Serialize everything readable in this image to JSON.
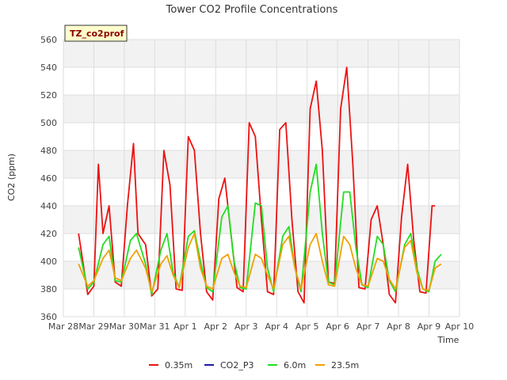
{
  "chart_data": {
    "type": "line",
    "title": "Tower CO2 Profile Concentrations",
    "xlabel": "Time",
    "ylabel": "CO2 (ppm)",
    "tag": "TZ_co2prof",
    "ylim": [
      360,
      560
    ],
    "yticks": [
      360,
      380,
      400,
      420,
      440,
      460,
      480,
      500,
      520,
      540,
      560
    ],
    "xlim": [
      0,
      13
    ],
    "xticks": [
      {
        "pos": 0,
        "label": "Mar 28"
      },
      {
        "pos": 1,
        "label": "Mar 29"
      },
      {
        "pos": 2,
        "label": "Mar 30"
      },
      {
        "pos": 3,
        "label": "Mar 31"
      },
      {
        "pos": 4,
        "label": "Apr 1"
      },
      {
        "pos": 5,
        "label": "Apr 2"
      },
      {
        "pos": 6,
        "label": "Apr 3"
      },
      {
        "pos": 7,
        "label": "Apr 4"
      },
      {
        "pos": 8,
        "label": "Apr 5"
      },
      {
        "pos": 9,
        "label": "Apr 6"
      },
      {
        "pos": 10,
        "label": "Apr 7"
      },
      {
        "pos": 11,
        "label": "Apr 8"
      },
      {
        "pos": 12,
        "label": "Apr 9"
      },
      {
        "pos": 13,
        "label": "Apr 10"
      }
    ],
    "grid": true,
    "series": [
      {
        "name": "0.35m",
        "color": "#ee1111",
        "values": [
          [
            0.5,
            420
          ],
          [
            0.8,
            376
          ],
          [
            1.0,
            382
          ],
          [
            1.15,
            470
          ],
          [
            1.3,
            420
          ],
          [
            1.5,
            440
          ],
          [
            1.7,
            385
          ],
          [
            1.9,
            382
          ],
          [
            2.1,
            440
          ],
          [
            2.3,
            485
          ],
          [
            2.45,
            420
          ],
          [
            2.7,
            412
          ],
          [
            2.9,
            375
          ],
          [
            3.1,
            380
          ],
          [
            3.3,
            480
          ],
          [
            3.5,
            455
          ],
          [
            3.7,
            380
          ],
          [
            3.9,
            379
          ],
          [
            4.1,
            490
          ],
          [
            4.3,
            480
          ],
          [
            4.5,
            420
          ],
          [
            4.7,
            378
          ],
          [
            4.9,
            372
          ],
          [
            5.1,
            445
          ],
          [
            5.3,
            460
          ],
          [
            5.5,
            420
          ],
          [
            5.7,
            381
          ],
          [
            5.9,
            378
          ],
          [
            6.1,
            500
          ],
          [
            6.3,
            490
          ],
          [
            6.5,
            430
          ],
          [
            6.7,
            378
          ],
          [
            6.9,
            376
          ],
          [
            7.1,
            495
          ],
          [
            7.3,
            500
          ],
          [
            7.5,
            430
          ],
          [
            7.7,
            378
          ],
          [
            7.9,
            370
          ],
          [
            8.1,
            510
          ],
          [
            8.3,
            530
          ],
          [
            8.5,
            480
          ],
          [
            8.7,
            385
          ],
          [
            8.9,
            384
          ],
          [
            9.1,
            510
          ],
          [
            9.3,
            540
          ],
          [
            9.5,
            470
          ],
          [
            9.7,
            381
          ],
          [
            9.9,
            380
          ],
          [
            10.1,
            430
          ],
          [
            10.3,
            440
          ],
          [
            10.5,
            412
          ],
          [
            10.7,
            376
          ],
          [
            10.9,
            370
          ],
          [
            11.1,
            432
          ],
          [
            11.3,
            470
          ],
          [
            11.5,
            415
          ],
          [
            11.7,
            378
          ],
          [
            11.9,
            377
          ],
          [
            12.1,
            440
          ],
          [
            12.2,
            440
          ]
        ]
      },
      {
        "name": "CO2_P3",
        "color": "#1a1aa8",
        "values": []
      },
      {
        "name": "6.0m",
        "color": "#22dd22",
        "values": [
          [
            0.5,
            410
          ],
          [
            0.8,
            380
          ],
          [
            1.0,
            385
          ],
          [
            1.3,
            412
          ],
          [
            1.5,
            418
          ],
          [
            1.7,
            386
          ],
          [
            1.9,
            385
          ],
          [
            2.2,
            415
          ],
          [
            2.4,
            420
          ],
          [
            2.7,
            398
          ],
          [
            2.9,
            376
          ],
          [
            3.2,
            408
          ],
          [
            3.4,
            420
          ],
          [
            3.6,
            392
          ],
          [
            3.8,
            381
          ],
          [
            4.1,
            418
          ],
          [
            4.3,
            422
          ],
          [
            4.5,
            400
          ],
          [
            4.7,
            381
          ],
          [
            4.9,
            378
          ],
          [
            5.2,
            432
          ],
          [
            5.4,
            440
          ],
          [
            5.6,
            400
          ],
          [
            5.8,
            381
          ],
          [
            6.0,
            380
          ],
          [
            6.3,
            442
          ],
          [
            6.5,
            440
          ],
          [
            6.7,
            395
          ],
          [
            6.9,
            378
          ],
          [
            7.2,
            418
          ],
          [
            7.4,
            425
          ],
          [
            7.6,
            395
          ],
          [
            7.8,
            378
          ],
          [
            8.1,
            450
          ],
          [
            8.3,
            470
          ],
          [
            8.5,
            420
          ],
          [
            8.7,
            385
          ],
          [
            8.9,
            383
          ],
          [
            9.2,
            450
          ],
          [
            9.4,
            450
          ],
          [
            9.6,
            410
          ],
          [
            9.8,
            383
          ],
          [
            10.0,
            381
          ],
          [
            10.3,
            418
          ],
          [
            10.5,
            412
          ],
          [
            10.7,
            386
          ],
          [
            10.9,
            378
          ],
          [
            11.2,
            412
          ],
          [
            11.4,
            420
          ],
          [
            11.6,
            395
          ],
          [
            11.8,
            380
          ],
          [
            12.0,
            378
          ],
          [
            12.2,
            400
          ],
          [
            12.4,
            405
          ]
        ]
      },
      {
        "name": "23.5m",
        "color": "#f0a000",
        "values": [
          [
            0.5,
            398
          ],
          [
            0.8,
            382
          ],
          [
            1.0,
            386
          ],
          [
            1.3,
            402
          ],
          [
            1.5,
            408
          ],
          [
            1.7,
            388
          ],
          [
            1.9,
            386
          ],
          [
            2.2,
            402
          ],
          [
            2.4,
            408
          ],
          [
            2.7,
            395
          ],
          [
            2.9,
            378
          ],
          [
            3.2,
            398
          ],
          [
            3.4,
            404
          ],
          [
            3.6,
            390
          ],
          [
            3.8,
            381
          ],
          [
            4.1,
            410
          ],
          [
            4.3,
            420
          ],
          [
            4.5,
            395
          ],
          [
            4.7,
            382
          ],
          [
            4.9,
            380
          ],
          [
            5.2,
            402
          ],
          [
            5.4,
            405
          ],
          [
            5.6,
            392
          ],
          [
            5.8,
            382
          ],
          [
            6.0,
            381
          ],
          [
            6.3,
            405
          ],
          [
            6.5,
            402
          ],
          [
            6.7,
            390
          ],
          [
            6.9,
            380
          ],
          [
            7.2,
            412
          ],
          [
            7.4,
            418
          ],
          [
            7.6,
            395
          ],
          [
            7.8,
            380
          ],
          [
            8.1,
            412
          ],
          [
            8.3,
            420
          ],
          [
            8.5,
            400
          ],
          [
            8.7,
            383
          ],
          [
            8.9,
            382
          ],
          [
            9.2,
            418
          ],
          [
            9.4,
            412
          ],
          [
            9.6,
            395
          ],
          [
            9.8,
            383
          ],
          [
            10.0,
            382
          ],
          [
            10.3,
            402
          ],
          [
            10.5,
            400
          ],
          [
            10.7,
            387
          ],
          [
            10.9,
            380
          ],
          [
            11.2,
            410
          ],
          [
            11.4,
            415
          ],
          [
            11.6,
            392
          ],
          [
            11.8,
            380
          ],
          [
            12.0,
            379
          ],
          [
            12.2,
            395
          ],
          [
            12.4,
            398
          ]
        ]
      }
    ]
  }
}
